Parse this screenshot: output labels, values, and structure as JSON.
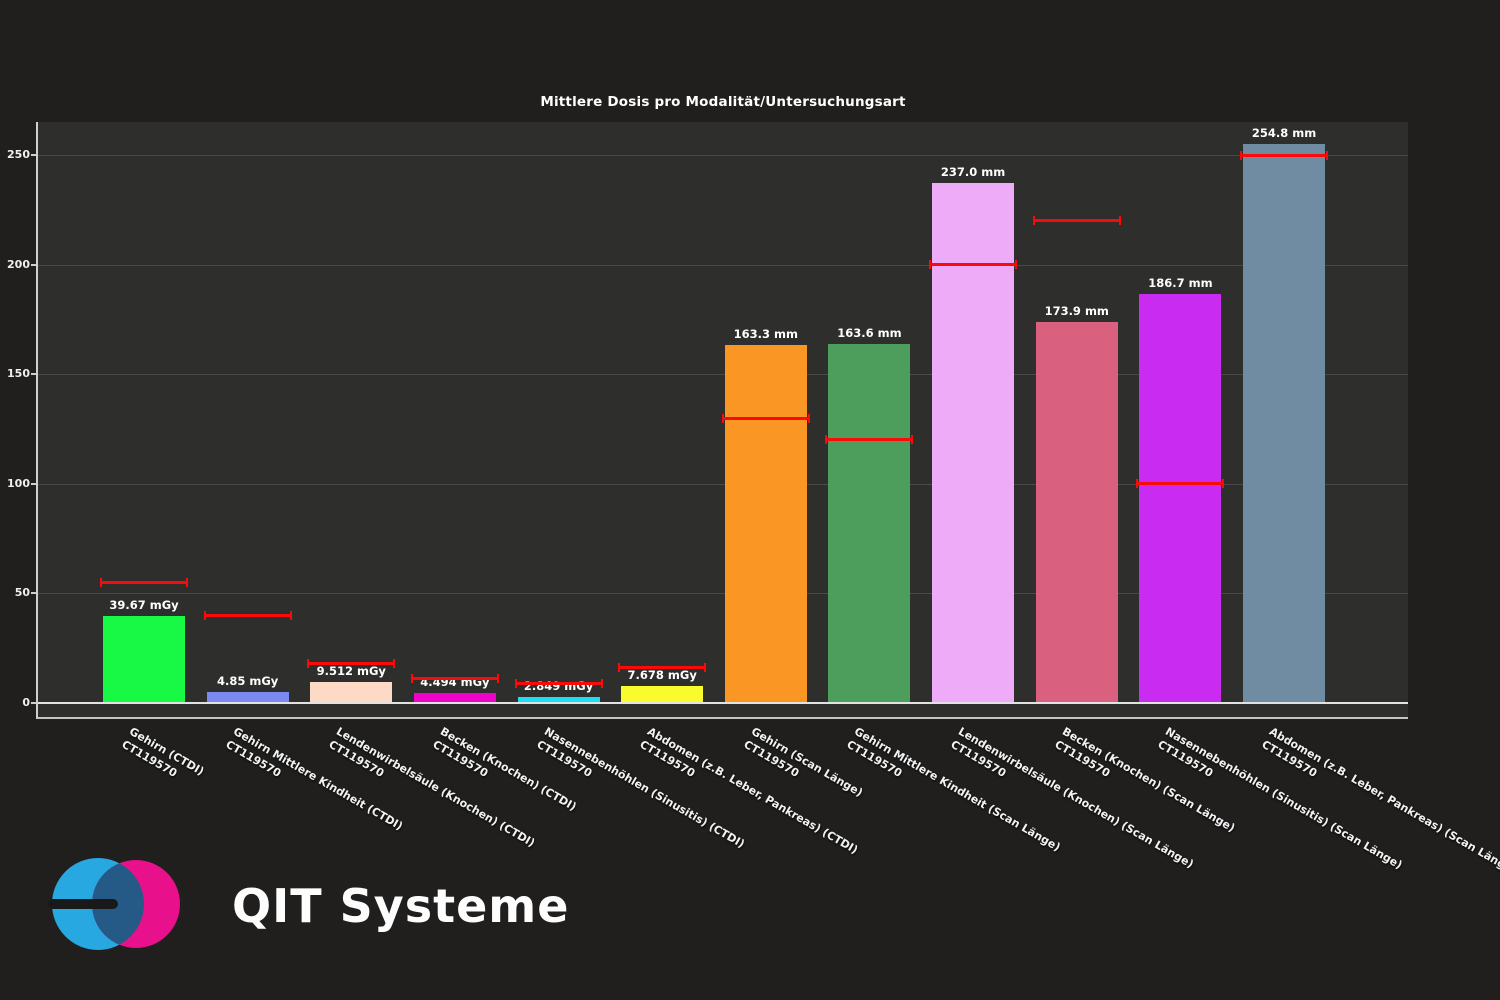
{
  "logo": {
    "text": "QIT Systeme",
    "blue": "#28a8e0",
    "pink": "#e9108c",
    "overlap": "#265a86"
  },
  "chart_data": {
    "type": "bar",
    "title": "Mittlere Dosis pro Modalität/Untersuchungsart",
    "xlabel": "",
    "ylabel": "",
    "ylim": [
      0,
      265
    ],
    "yticks": [
      0,
      50,
      100,
      150,
      200,
      250
    ],
    "grid": true,
    "reference_line_color": "#fb0a0a",
    "bars": [
      {
        "category": "Gehirn (CTDI)",
        "device": "CT119570",
        "value": 39.67,
        "label": "39.67 mGy",
        "color": "#17f945",
        "reference": 55
      },
      {
        "category": "Gehirn Mittlere Kindheit (CTDI)",
        "device": "CT119570",
        "value": 4.85,
        "label": "4.85 mGy",
        "color": "#7a8af0",
        "reference": 40
      },
      {
        "category": "Lendenwirbelsäule (Knochen) (CTDI)",
        "device": "CT119570",
        "value": 9.512,
        "label": "9.512 mGy",
        "color": "#fcdac6",
        "reference": 18
      },
      {
        "category": "Becken (Knochen) (CTDI)",
        "device": "CT119570",
        "value": 4.494,
        "label": "4.494 mGy",
        "color": "#f102cb",
        "reference": 11
      },
      {
        "category": "Nasennebenhöhlen (Sinusitis) (CTDI)",
        "device": "CT119570",
        "value": 2.849,
        "label": "2.849 mGy",
        "color": "#1cdef2",
        "reference": 9
      },
      {
        "category": "Abdomen (z.B. Leber, Pankreas) (CTDI)",
        "device": "CT119570",
        "value": 7.678,
        "label": "7.678 mGy",
        "color": "#f9fb2d",
        "reference": 16
      },
      {
        "category": "Gehirn (Scan Länge)",
        "device": "CT119570",
        "value": 163.3,
        "label": "163.3 mm",
        "color": "#fa9724",
        "reference": 130
      },
      {
        "category": "Gehirn Mittlere Kindheit (Scan Länge)",
        "device": "CT119570",
        "value": 163.6,
        "label": "163.6 mm",
        "color": "#4d9e5c",
        "reference": 120
      },
      {
        "category": "Lendenwirbelsäule (Knochen) (Scan Länge)",
        "device": "CT119570",
        "value": 237.0,
        "label": "237.0 mm",
        "color": "#eeabf7",
        "reference": 200
      },
      {
        "category": "Becken (Knochen) (Scan Länge)",
        "device": "CT119570",
        "value": 173.9,
        "label": "173.9 mm",
        "color": "#d9607e",
        "reference": 220
      },
      {
        "category": "Nasennebenhöhlen (Sinusitis) (Scan Länge)",
        "device": "CT119570",
        "value": 186.7,
        "label": "186.7 mm",
        "color": "#c92bf1",
        "reference": 100
      },
      {
        "category": "Abdomen (z.B. Leber, Pankreas) (Scan Länge)",
        "device": "CT119570",
        "value": 254.8,
        "label": "254.8 mm",
        "color": "#6f8ca2",
        "reference": 250
      }
    ]
  }
}
